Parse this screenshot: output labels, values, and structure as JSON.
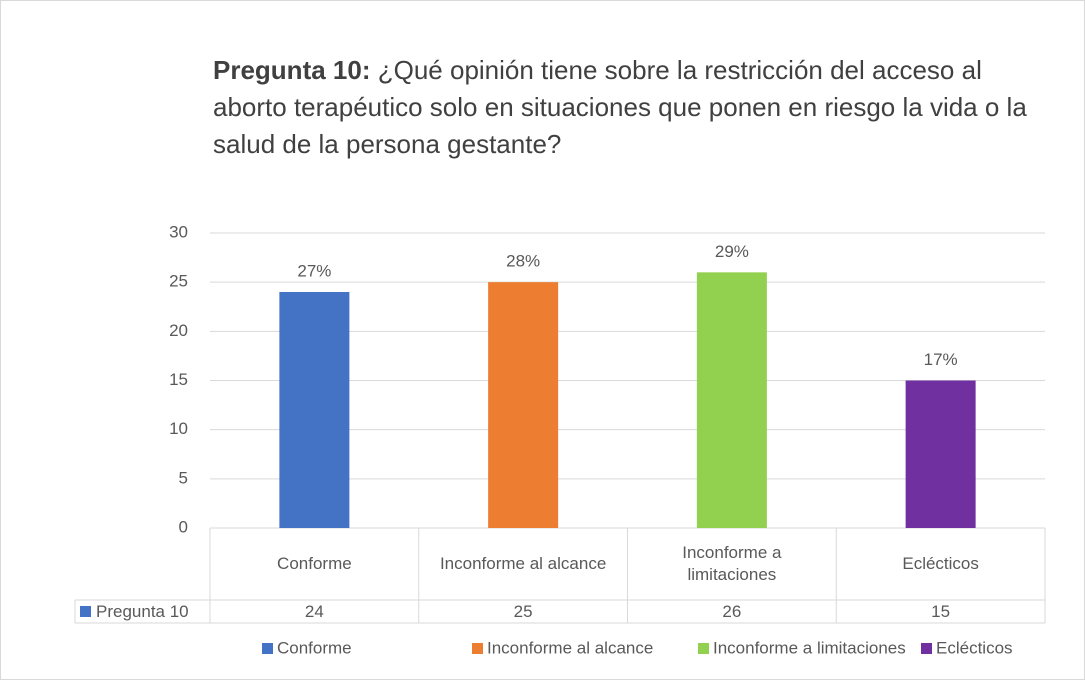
{
  "chart_data": {
    "type": "bar",
    "title_bold": "Pregunta 10:",
    "title": "¿Qué opinión tiene sobre la restricción del acceso al aborto terapéutico solo en situaciones que ponen en riesgo la vida o la salud de la persona gestante?",
    "categories": [
      "Conforme",
      "Inconforme al alcance",
      "Inconforme a limitaciones",
      "Eclécticos"
    ],
    "series": [
      {
        "name": "Pregunta 10",
        "color": "#4472c4",
        "values": [
          24,
          25,
          26,
          15
        ]
      }
    ],
    "colors": [
      "#4472c4",
      "#ed7d31",
      "#92d050",
      "#7030a0"
    ],
    "shares": {
      "values": [
        27,
        28,
        29,
        17
      ],
      "value_labels": [
        "27%",
        "28%",
        "29%",
        "17%"
      ]
    },
    "ylim": [
      0,
      30
    ],
    "yticks": [
      0,
      5,
      10,
      15,
      20,
      25,
      30
    ],
    "grid": true,
    "legend": "bottom"
  }
}
